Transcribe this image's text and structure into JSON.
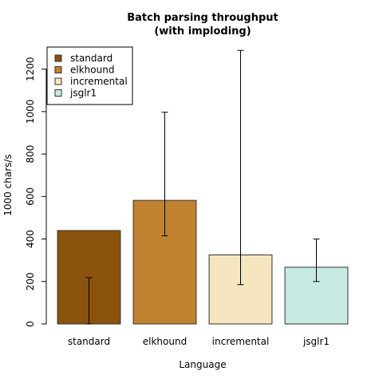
{
  "chart_data": {
    "type": "bar",
    "title": "Batch parsing throughput",
    "subtitle": "(with imploding)",
    "xlabel": "Language",
    "ylabel": "1000 chars/s",
    "categories": [
      "standard",
      "elkhound",
      "incremental",
      "jsglr1"
    ],
    "values": [
      440,
      582,
      325,
      267
    ],
    "error_low": [
      0,
      415,
      185,
      200
    ],
    "error_high": [
      218,
      997,
      1288,
      400
    ],
    "colors": [
      "#8B520D",
      "#C0822F",
      "#F5E6C0",
      "#C7EAE3"
    ],
    "ylim": [
      0,
      1300
    ],
    "yticks": [
      0,
      200,
      400,
      600,
      800,
      1000,
      1200
    ],
    "grid": false,
    "legend": {
      "position": "top-left",
      "entries": [
        "standard",
        "elkhound",
        "incremental",
        "jsglr1"
      ]
    }
  }
}
